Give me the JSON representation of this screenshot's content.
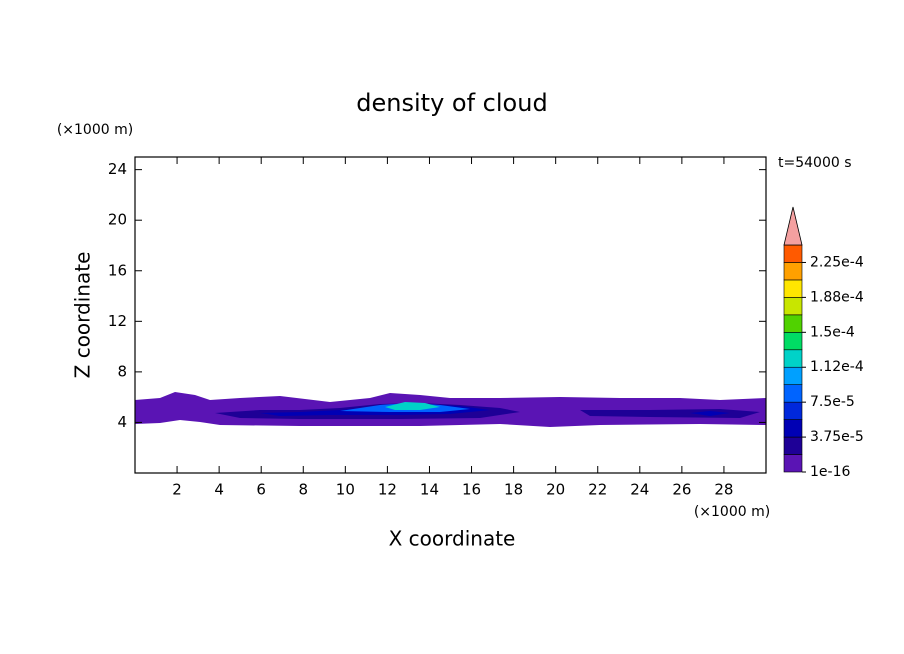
{
  "chart_data": {
    "type": "contour",
    "title": "density of cloud",
    "time_label": "t=54000 s",
    "x_label": "X coordinate",
    "y_label": "Z coordinate",
    "x_unit": "(×1000 m)",
    "y_unit": "(×1000 m)",
    "xlim": [
      0,
      30
    ],
    "ylim": [
      0,
      25
    ],
    "xticks": [
      2,
      4,
      6,
      8,
      10,
      12,
      14,
      16,
      18,
      20,
      22,
      24,
      26,
      28
    ],
    "yticks": [
      4,
      8,
      12,
      16,
      20,
      24
    ],
    "colorbar": {
      "clim": [
        1e-16,
        0.00024375
      ],
      "ticks": [
        {
          "value": 1e-16,
          "label": "1e-16"
        },
        {
          "value": 3.75e-05,
          "label": "3.75e-5"
        },
        {
          "value": 7.5e-05,
          "label": "7.5e-5"
        },
        {
          "value": 0.0001125,
          "label": "1.12e-4"
        },
        {
          "value": 0.00015,
          "label": "1.5e-4"
        },
        {
          "value": 0.0001875,
          "label": "1.88e-4"
        },
        {
          "value": 0.000225,
          "label": "2.25e-4"
        }
      ],
      "colors": [
        "#5a14b4",
        "#1e0096",
        "#0000b4",
        "#0028dc",
        "#0064ff",
        "#00a0ff",
        "#00d2c8",
        "#00dc64",
        "#50d200",
        "#c8e600",
        "#ffe600",
        "#ffa000",
        "#ff5a00"
      ],
      "over_color": "#f4a0a0"
    }
  }
}
